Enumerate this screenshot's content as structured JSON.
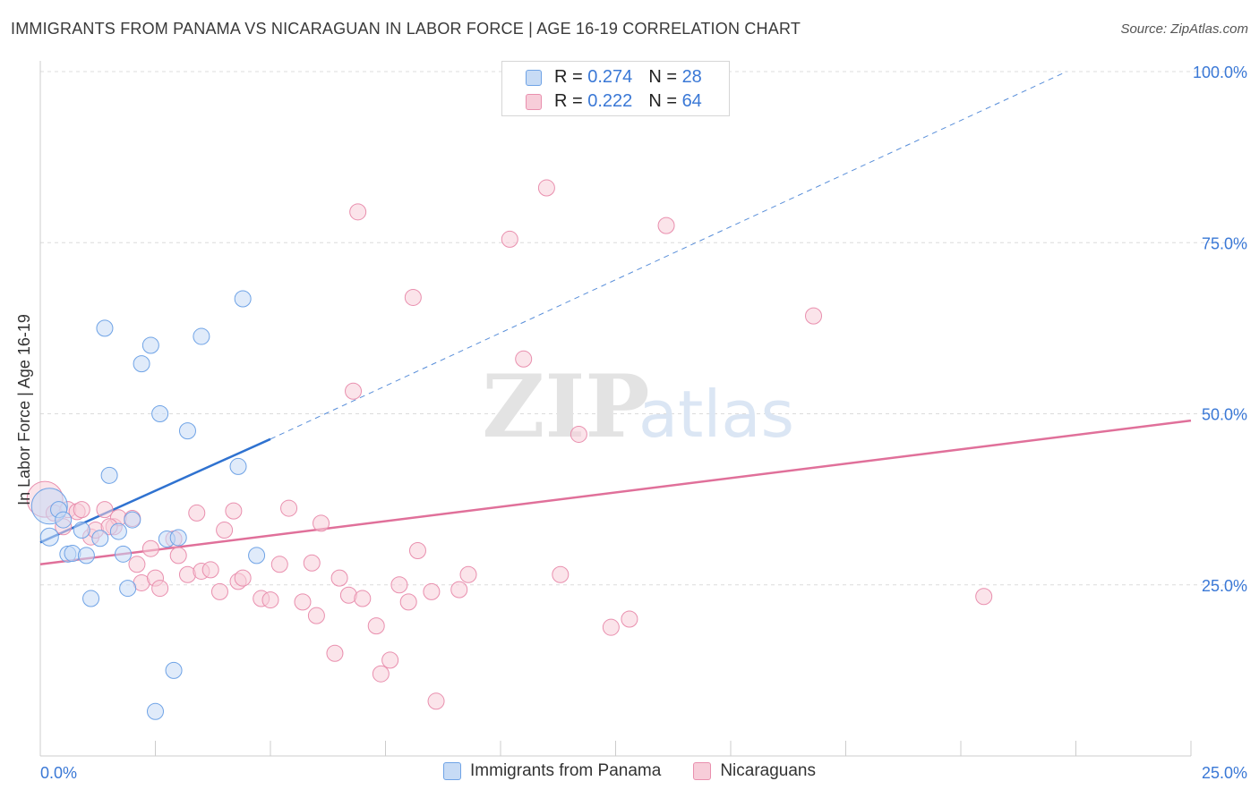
{
  "chart_data": {
    "type": "scatter",
    "title": "IMMIGRANTS FROM PANAMA VS NICARAGUAN IN LABOR FORCE | AGE 16-19 CORRELATION CHART",
    "source": "Source: ZipAtlas.com",
    "ylabel": "In Labor Force | Age 16-19",
    "xlabel": "",
    "xlim": [
      0,
      25
    ],
    "ylim": [
      0,
      100
    ],
    "x_tick_labels": [
      "0.0%",
      "25.0%"
    ],
    "y_tick_labels": [
      "25.0%",
      "50.0%",
      "75.0%",
      "100.0%"
    ],
    "y_tick_values": [
      25,
      50,
      75,
      100
    ],
    "watermark": "ZIPatlas",
    "legend": {
      "entries": [
        {
          "r_label": "R =",
          "r_value": "0.274",
          "n_label": "N =",
          "n_value": "28"
        },
        {
          "r_label": "R =",
          "r_value": "0.222",
          "n_label": "N =",
          "n_value": "64"
        }
      ]
    },
    "series": [
      {
        "name": "Immigrants from Panama",
        "color": "#6fa3e6",
        "fill": "#c7dbf5",
        "line_color": "#2f72d0",
        "trend": {
          "x0": 0,
          "y0": 31.2,
          "x1": 5.0,
          "y1": 46.3,
          "dash_to_x": 22.3,
          "dash_to_y": 100
        },
        "points": [
          [
            0.2,
            36.5
          ],
          [
            0.2,
            32.0
          ],
          [
            0.4,
            36.0
          ],
          [
            0.5,
            34.5
          ],
          [
            0.6,
            29.5
          ],
          [
            0.7,
            29.6
          ],
          [
            0.9,
            33.0
          ],
          [
            1.0,
            29.3
          ],
          [
            1.1,
            23.0
          ],
          [
            1.3,
            31.8
          ],
          [
            1.4,
            62.5
          ],
          [
            1.5,
            41.0
          ],
          [
            1.7,
            32.8
          ],
          [
            1.8,
            29.5
          ],
          [
            1.9,
            24.5
          ],
          [
            2.0,
            34.5
          ],
          [
            2.2,
            57.3
          ],
          [
            2.4,
            60.0
          ],
          [
            2.5,
            6.5
          ],
          [
            2.6,
            50.0
          ],
          [
            2.75,
            31.7
          ],
          [
            2.9,
            12.5
          ],
          [
            3.0,
            31.9
          ],
          [
            3.2,
            47.5
          ],
          [
            3.5,
            61.3
          ],
          [
            4.3,
            42.3
          ],
          [
            4.4,
            66.8
          ],
          [
            4.7,
            29.3
          ]
        ],
        "point_sizes": [
          20,
          10,
          9,
          9,
          9,
          9,
          9,
          9,
          9,
          9,
          9,
          9,
          9,
          9,
          9,
          9,
          9,
          9,
          9,
          9,
          9,
          9,
          9,
          9,
          9,
          9,
          9,
          9
        ]
      },
      {
        "name": "Nicaraguans",
        "color": "#e98fae",
        "fill": "#f7cdd9",
        "line_color": "#e0709a",
        "trend": {
          "x0": 0,
          "y0": 28.0,
          "x1": 25,
          "y1": 49.0
        },
        "points": [
          [
            0.1,
            37.5
          ],
          [
            0.3,
            35.5
          ],
          [
            0.5,
            33.5
          ],
          [
            0.6,
            36.0
          ],
          [
            0.8,
            35.7
          ],
          [
            0.9,
            36.0
          ],
          [
            1.1,
            32.0
          ],
          [
            1.2,
            33.0
          ],
          [
            1.4,
            36.0
          ],
          [
            1.6,
            33.5
          ],
          [
            1.7,
            34.8
          ],
          [
            2.0,
            34.7
          ],
          [
            2.1,
            28.0
          ],
          [
            2.2,
            25.3
          ],
          [
            2.4,
            30.3
          ],
          [
            2.5,
            26.0
          ],
          [
            2.6,
            24.5
          ],
          [
            2.9,
            31.7
          ],
          [
            3.0,
            29.3
          ],
          [
            3.2,
            26.5
          ],
          [
            3.4,
            35.5
          ],
          [
            3.5,
            27.0
          ],
          [
            3.7,
            27.2
          ],
          [
            3.9,
            24.0
          ],
          [
            4.0,
            33.0
          ],
          [
            4.2,
            35.8
          ],
          [
            4.3,
            25.5
          ],
          [
            4.4,
            26.0
          ],
          [
            4.8,
            23.0
          ],
          [
            5.0,
            22.8
          ],
          [
            5.2,
            28.0
          ],
          [
            5.4,
            36.2
          ],
          [
            5.7,
            22.5
          ],
          [
            5.9,
            28.2
          ],
          [
            6.0,
            20.5
          ],
          [
            6.1,
            34.0
          ],
          [
            6.4,
            15.0
          ],
          [
            6.5,
            26.0
          ],
          [
            6.7,
            23.5
          ],
          [
            6.9,
            79.5
          ],
          [
            6.8,
            53.3
          ],
          [
            7.0,
            23.0
          ],
          [
            7.3,
            19.0
          ],
          [
            7.4,
            12.0
          ],
          [
            7.6,
            14.0
          ],
          [
            7.8,
            25.0
          ],
          [
            8.0,
            22.5
          ],
          [
            8.1,
            67.0
          ],
          [
            8.2,
            30.0
          ],
          [
            8.5,
            24.0
          ],
          [
            8.6,
            8.0
          ],
          [
            9.1,
            24.3
          ],
          [
            9.3,
            26.5
          ],
          [
            10.2,
            75.5
          ],
          [
            10.5,
            58.0
          ],
          [
            11.0,
            83.0
          ],
          [
            11.3,
            26.5
          ],
          [
            11.7,
            47.0
          ],
          [
            12.4,
            18.8
          ],
          [
            12.8,
            20.0
          ],
          [
            13.6,
            77.5
          ],
          [
            16.8,
            64.3
          ],
          [
            20.5,
            23.3
          ],
          [
            1.5,
            33.5
          ]
        ],
        "point_sizes": [
          20,
          9,
          9,
          9,
          9,
          9,
          9,
          9,
          9,
          9,
          9,
          9,
          9,
          9,
          9,
          9,
          9,
          9,
          9,
          9,
          9,
          9,
          9,
          9,
          9,
          9,
          9,
          9,
          9,
          9,
          9,
          9,
          9,
          9,
          9,
          9,
          9,
          9,
          9,
          9,
          9,
          9,
          9,
          9,
          9,
          9,
          9,
          9,
          9,
          9,
          9,
          9,
          9,
          9,
          9,
          9,
          9,
          9,
          9,
          9,
          9,
          9,
          9,
          9
        ]
      }
    ]
  }
}
